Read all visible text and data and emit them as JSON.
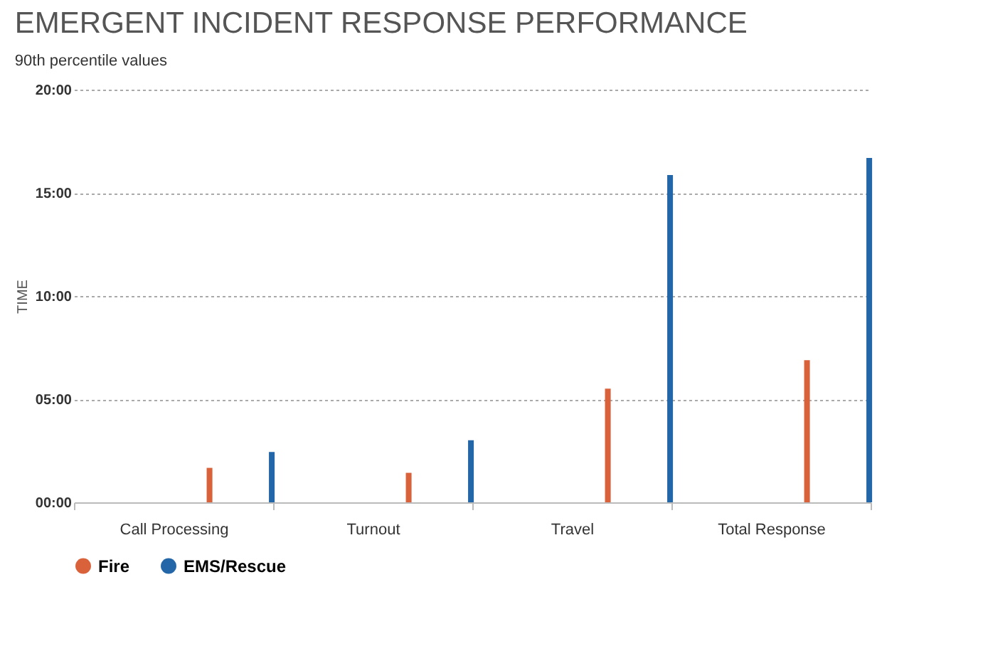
{
  "chart_data": {
    "type": "bar",
    "title": "EMERGENT INCIDENT RESPONSE PERFORMANCE",
    "subtitle": "90th percentile values",
    "ylabel": "TIME",
    "categories": [
      "Call Processing",
      "Turnout",
      "Travel",
      "Total Response"
    ],
    "series": [
      {
        "name": "Fire",
        "color": "#d9623b",
        "values": [
          1.67,
          1.43,
          5.51,
          6.89
        ]
      },
      {
        "name": "EMS/Rescue",
        "color": "#2467a8",
        "values": [
          2.44,
          3.01,
          15.86,
          16.69
        ]
      }
    ],
    "ylim": [
      0,
      20
    ],
    "yticks": [
      {
        "value": 0,
        "label": "00:00"
      },
      {
        "value": 5,
        "label": "05:00"
      },
      {
        "value": 10,
        "label": "10:00"
      },
      {
        "value": 15,
        "label": "15:00"
      },
      {
        "value": 20,
        "label": "20:00"
      }
    ],
    "grid": "y",
    "legend": "bottom"
  }
}
